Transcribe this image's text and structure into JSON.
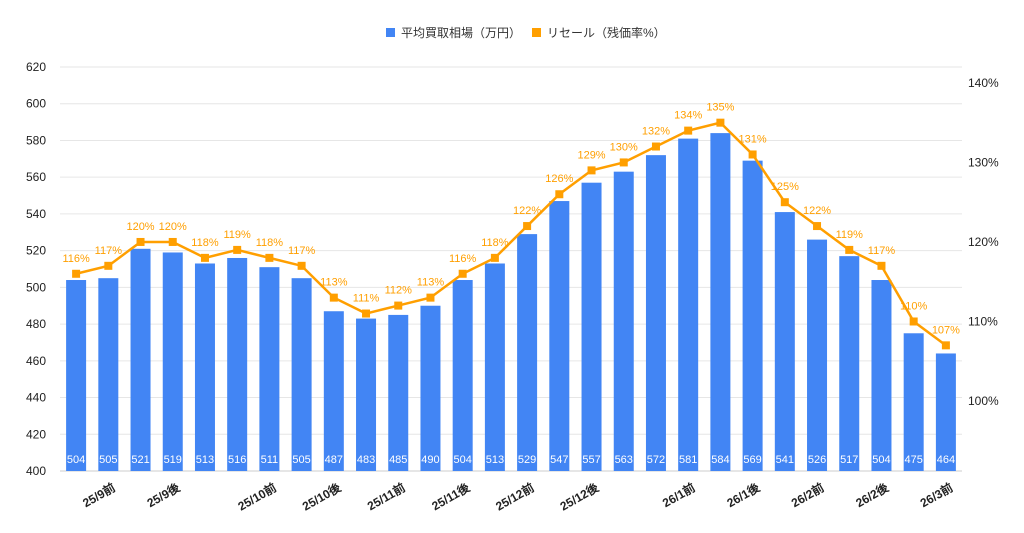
{
  "chart_data": {
    "type": "bar+line",
    "legend_position": "top-center",
    "legend": [
      {
        "name": "平均買取相場（万円）",
        "color": "#4285f4"
      },
      {
        "name": "リセール（残価率%）",
        "color": "#ff9f00"
      }
    ],
    "categories": [
      "",
      "25/9前",
      "",
      "25/9後",
      "",
      "",
      "25/10前",
      "",
      "25/10後",
      "",
      "25/11前",
      "",
      "25/11後",
      "",
      "25/12前",
      "",
      "25/12後",
      "",
      "",
      "26/1前",
      "",
      "26/1後",
      "",
      "26/2前",
      "",
      "26/2後",
      "",
      "26/3前"
    ],
    "series": [
      {
        "name": "平均買取相場（万円）",
        "type": "bar",
        "axis": "left",
        "values": [
          504,
          505,
          521,
          519,
          513,
          516,
          511,
          505,
          487,
          483,
          485,
          490,
          504,
          513,
          529,
          547,
          557,
          563,
          572,
          581,
          584,
          569,
          541,
          526,
          517,
          504,
          475,
          464
        ]
      },
      {
        "name": "リセール（残価率%）",
        "type": "line",
        "axis": "right",
        "values": [
          116,
          117,
          120,
          120,
          118,
          119,
          118,
          117,
          113,
          111,
          112,
          113,
          116,
          118,
          122,
          126,
          129,
          130,
          132,
          134,
          135,
          131,
          125,
          122,
          119,
          117,
          110,
          107
        ]
      }
    ],
    "ylim": [
      400,
      620
    ],
    "yticks": [
      400,
      420,
      440,
      460,
      480,
      500,
      520,
      540,
      560,
      580,
      600,
      620
    ],
    "y2lim": [
      91.2,
      142
    ],
    "y2ticks": [
      100,
      110,
      120,
      130,
      140
    ],
    "y2_suffix": "%",
    "grid": true
  }
}
